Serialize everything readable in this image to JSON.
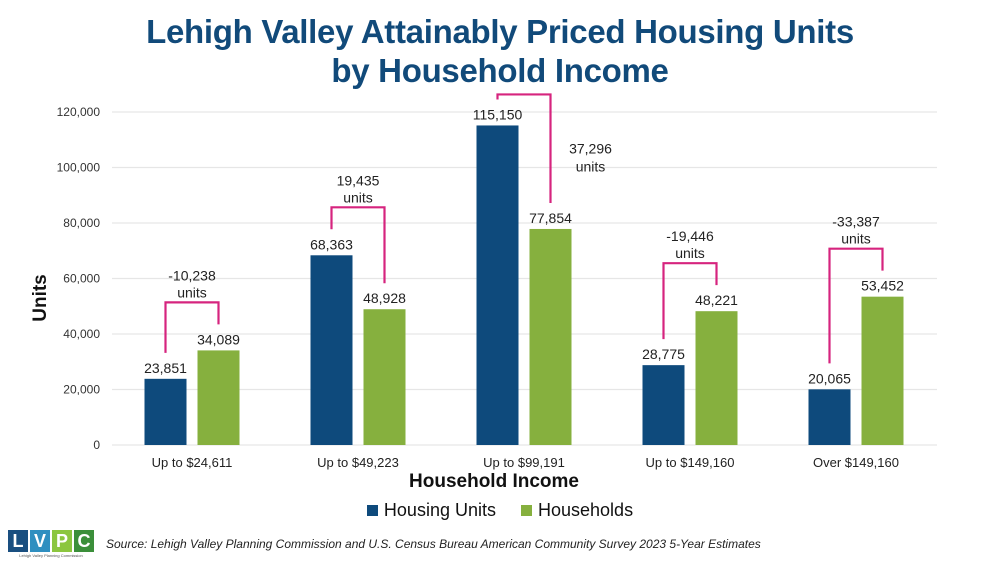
{
  "title_line1": "Lehigh Valley Attainably Priced Housing Units",
  "title_line2": "by Household Income",
  "colors": {
    "housing_units": "#0e4a7c",
    "households": "#86b03e",
    "bracket": "#d6247e",
    "title": "#114a7a",
    "grid": "#e6e6e6"
  },
  "chart_data": {
    "type": "bar",
    "title": "Lehigh Valley Attainably Priced Housing Units by Household Income",
    "xlabel": "Household Income",
    "ylabel": "Units",
    "ylim": [
      0,
      120000
    ],
    "yticks": [
      0,
      20000,
      40000,
      60000,
      80000,
      100000,
      120000
    ],
    "ytick_labels": [
      "0",
      "20,000",
      "40,000",
      "60,000",
      "80,000",
      "100,000",
      "120,000"
    ],
    "grid": true,
    "legend_position": "bottom-center",
    "categories": [
      "Up to $24,611",
      "Up to $49,223",
      "Up to $99,191",
      "Up to $149,160",
      "Over $149,160"
    ],
    "series": [
      {
        "name": "Housing Units",
        "values": [
          23851,
          68363,
          115150,
          28775,
          20065
        ],
        "labels": [
          "23,851",
          "68,363",
          "115,150",
          "28,775",
          "20,065"
        ]
      },
      {
        "name": "Households",
        "values": [
          34089,
          48928,
          77854,
          48221,
          53452
        ],
        "labels": [
          "34,089",
          "48,928",
          "77,854",
          "48,221",
          "53,452"
        ]
      }
    ],
    "annotations": [
      {
        "value": "-10,238",
        "unit": "units"
      },
      {
        "value": "19,435",
        "unit": "units"
      },
      {
        "value": "37,296",
        "unit": "units"
      },
      {
        "value": "-19,446",
        "unit": "units"
      },
      {
        "value": "-33,387",
        "unit": "units"
      }
    ]
  },
  "legend": {
    "items": [
      {
        "label": "Housing Units"
      },
      {
        "label": "Households"
      }
    ]
  },
  "footer": {
    "logo_letters": [
      "L",
      "V",
      "P",
      "C"
    ],
    "logo_colors": [
      "#1a4f80",
      "#2f8fc0",
      "#8cc63f",
      "#3b8f3a"
    ],
    "logo_subtitle": "Lehigh Valley Planning Commission",
    "source": "Source: Lehigh Valley Planning Commission and U.S. Census Bureau American Community Survey 2023 5-Year Estimates"
  }
}
